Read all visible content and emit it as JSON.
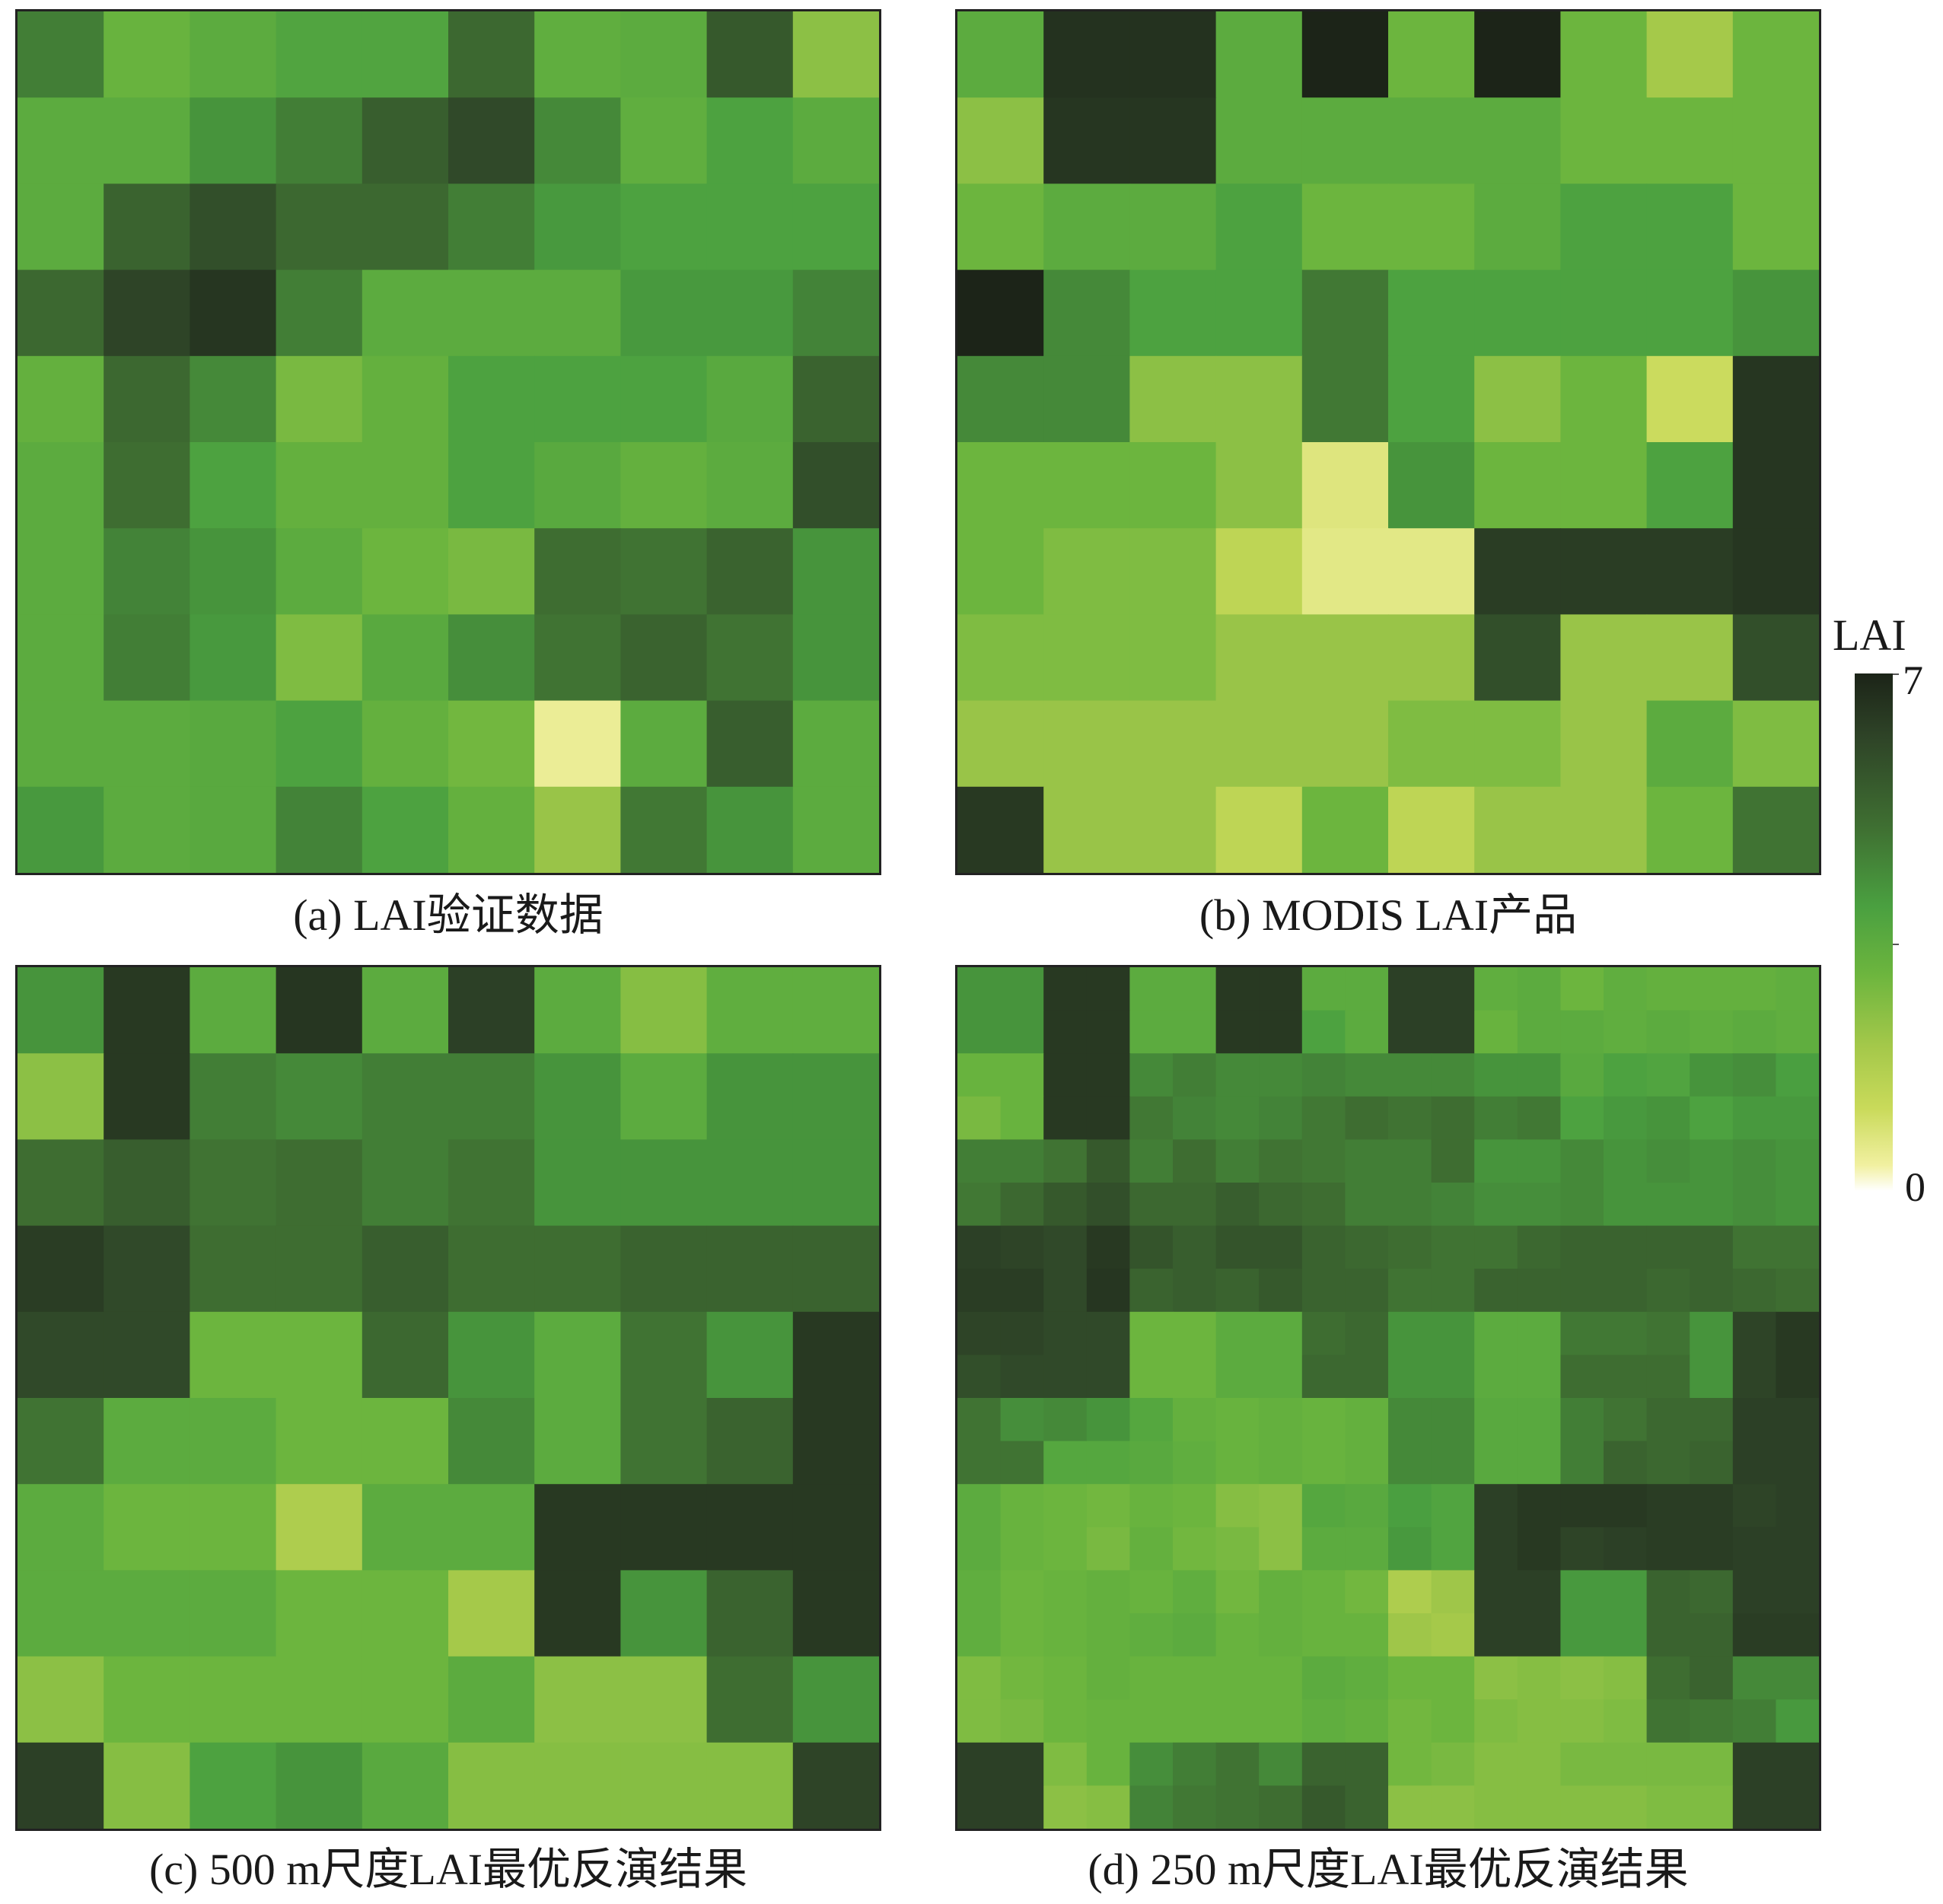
{
  "chart_data": [
    {
      "type": "heatmap",
      "title": "(a) LAI验证数据",
      "rows": [
        [
          5.0,
          3.6,
          3.9,
          4.2,
          4.2,
          5.4,
          3.8,
          3.9,
          5.7,
          3.0
        ],
        [
          3.9,
          3.9,
          4.6,
          5.0,
          5.6,
          6.0,
          4.8,
          3.8,
          4.3,
          3.9
        ],
        [
          3.9,
          5.5,
          5.9,
          5.4,
          5.4,
          5.0,
          4.5,
          4.3,
          4.3,
          4.3
        ],
        [
          5.4,
          6.1,
          6.5,
          5.0,
          3.9,
          3.9,
          3.9,
          4.5,
          4.5,
          4.9
        ],
        [
          3.7,
          5.4,
          4.8,
          3.3,
          3.7,
          4.3,
          4.3,
          4.3,
          4.0,
          5.5
        ],
        [
          3.9,
          5.3,
          4.3,
          3.7,
          3.7,
          4.3,
          4.0,
          3.7,
          3.9,
          5.9
        ],
        [
          3.9,
          4.9,
          4.6,
          3.9,
          3.5,
          3.3,
          5.3,
          5.2,
          5.5,
          4.6
        ],
        [
          3.9,
          5.0,
          4.5,
          3.2,
          4.0,
          4.7,
          5.2,
          5.5,
          5.2,
          4.6
        ],
        [
          3.9,
          3.9,
          4.0,
          4.3,
          3.7,
          3.4,
          1.0,
          3.9,
          5.6,
          3.9
        ],
        [
          4.5,
          3.9,
          4.0,
          4.9,
          4.3,
          3.7,
          2.8,
          5.1,
          4.6,
          3.9
        ]
      ]
    },
    {
      "type": "heatmap",
      "title": "(b) MODIS LAI产品",
      "rows": [
        [
          3.9,
          6.6,
          6.6,
          3.9,
          7.0,
          3.5,
          7.0,
          3.5,
          2.6,
          3.5
        ],
        [
          3.0,
          6.5,
          6.5,
          3.9,
          3.9,
          3.9,
          3.9,
          3.5,
          3.5,
          3.5
        ],
        [
          3.5,
          3.9,
          3.9,
          4.3,
          3.5,
          3.5,
          3.9,
          4.3,
          4.3,
          3.5
        ],
        [
          7.0,
          4.8,
          4.3,
          4.3,
          5.1,
          4.3,
          4.3,
          4.3,
          4.3,
          4.6
        ],
        [
          4.8,
          4.8,
          3.0,
          3.0,
          5.1,
          4.3,
          3.0,
          3.5,
          1.7,
          6.5
        ],
        [
          3.5,
          3.5,
          3.5,
          3.0,
          1.3,
          4.6,
          3.5,
          3.5,
          4.3,
          6.5
        ],
        [
          3.5,
          3.2,
          3.2,
          2.0,
          1.2,
          1.2,
          6.3,
          6.3,
          6.3,
          6.5
        ],
        [
          3.2,
          3.2,
          3.2,
          2.8,
          2.8,
          2.8,
          5.9,
          2.8,
          2.8,
          5.9
        ],
        [
          2.8,
          2.8,
          2.8,
          2.8,
          2.8,
          3.2,
          3.2,
          2.8,
          3.9,
          3.2
        ],
        [
          6.4,
          2.8,
          2.8,
          2.0,
          3.5,
          2.0,
          2.8,
          2.8,
          3.5,
          5.2
        ]
      ]
    },
    {
      "type": "heatmap",
      "title": "(c) 500 m尺度LAI最优反演结果",
      "rows": [
        [
          4.6,
          6.4,
          3.9,
          6.5,
          3.9,
          6.2,
          3.9,
          3.1,
          3.8,
          3.8
        ],
        [
          3.0,
          6.4,
          5.0,
          4.8,
          5.0,
          5.0,
          4.6,
          3.9,
          4.6,
          4.6
        ],
        [
          5.3,
          5.6,
          5.2,
          5.3,
          5.0,
          5.2,
          4.6,
          4.6,
          4.6,
          4.6
        ],
        [
          6.3,
          6.0,
          5.3,
          5.3,
          5.6,
          5.3,
          5.3,
          5.5,
          5.5,
          5.5
        ],
        [
          6.0,
          6.0,
          3.5,
          3.5,
          5.4,
          4.6,
          3.9,
          5.2,
          4.6,
          6.4
        ],
        [
          5.2,
          3.9,
          3.9,
          3.5,
          3.5,
          4.8,
          3.9,
          5.2,
          5.5,
          6.4
        ],
        [
          3.9,
          3.5,
          3.5,
          2.4,
          3.9,
          3.9,
          6.4,
          6.4,
          6.4,
          6.4
        ],
        [
          3.9,
          3.9,
          3.9,
          3.5,
          3.5,
          2.6,
          6.4,
          4.6,
          5.5,
          6.4
        ],
        [
          3.0,
          3.5,
          3.5,
          3.5,
          3.5,
          3.9,
          3.0,
          3.0,
          5.3,
          4.6
        ],
        [
          6.2,
          3.1,
          4.3,
          4.6,
          4.0,
          3.1,
          3.1,
          3.1,
          3.1,
          6.1
        ]
      ]
    },
    {
      "type": "heatmap",
      "title": "(d) 250 m尺度LAI最优反演结果",
      "rows": [
        [
          4.6,
          4.6,
          6.4,
          6.4,
          3.9,
          3.9,
          6.4,
          6.4,
          3.9,
          3.9,
          6.2,
          6.2,
          3.8,
          3.9,
          3.5,
          3.8,
          3.7,
          3.7,
          3.7,
          3.8
        ],
        [
          4.6,
          4.6,
          6.4,
          6.4,
          3.9,
          3.9,
          6.4,
          6.4,
          4.3,
          3.9,
          6.2,
          6.2,
          3.6,
          3.9,
          3.9,
          3.8,
          3.9,
          3.8,
          3.9,
          3.8
        ],
        [
          3.6,
          3.6,
          6.4,
          6.4,
          4.8,
          5.0,
          4.8,
          4.8,
          4.9,
          4.8,
          4.8,
          4.8,
          4.6,
          4.6,
          4.0,
          4.3,
          4.2,
          4.6,
          4.7,
          4.4
        ],
        [
          3.3,
          3.6,
          6.4,
          6.4,
          5.1,
          4.9,
          4.8,
          4.9,
          5.1,
          5.3,
          5.2,
          5.3,
          5.0,
          5.1,
          4.3,
          4.5,
          4.6,
          4.3,
          4.5,
          4.5
        ],
        [
          5.0,
          5.0,
          5.2,
          5.7,
          5.0,
          5.3,
          5.0,
          5.2,
          5.1,
          5.0,
          5.0,
          5.3,
          4.6,
          4.6,
          4.8,
          4.6,
          4.7,
          4.6,
          4.7,
          4.6
        ],
        [
          5.1,
          5.4,
          5.7,
          5.9,
          5.4,
          5.4,
          5.6,
          5.4,
          5.3,
          5.0,
          5.0,
          4.9,
          4.7,
          4.7,
          4.8,
          4.6,
          4.6,
          4.6,
          4.7,
          4.6
        ],
        [
          6.2,
          6.1,
          6.0,
          6.4,
          5.8,
          5.6,
          5.8,
          5.8,
          5.5,
          5.4,
          5.3,
          5.2,
          5.2,
          5.4,
          5.5,
          5.5,
          5.5,
          5.5,
          5.2,
          5.2
        ],
        [
          6.3,
          6.3,
          6.0,
          6.5,
          5.5,
          5.6,
          5.5,
          5.7,
          5.5,
          5.5,
          5.2,
          5.2,
          5.5,
          5.5,
          5.5,
          5.5,
          5.4,
          5.5,
          5.4,
          5.3
        ],
        [
          6.1,
          6.1,
          6.0,
          6.0,
          3.5,
          3.5,
          3.9,
          3.9,
          5.3,
          5.4,
          4.6,
          4.6,
          3.9,
          3.9,
          5.1,
          5.1,
          5.2,
          4.6,
          6.1,
          6.4
        ],
        [
          5.9,
          6.0,
          6.0,
          6.0,
          3.5,
          3.5,
          3.9,
          3.9,
          5.4,
          5.4,
          4.6,
          4.6,
          3.9,
          3.9,
          5.3,
          5.3,
          5.3,
          4.6,
          6.1,
          6.4
        ],
        [
          5.2,
          4.7,
          4.8,
          4.6,
          4.1,
          3.7,
          3.6,
          3.7,
          3.6,
          3.7,
          4.8,
          4.8,
          4.0,
          4.0,
          5.0,
          5.2,
          5.4,
          5.4,
          6.2,
          6.2
        ],
        [
          5.2,
          5.2,
          4.1,
          4.1,
          4.0,
          3.8,
          3.6,
          3.7,
          3.6,
          3.7,
          4.8,
          4.8,
          4.0,
          4.0,
          5.0,
          5.5,
          5.4,
          5.5,
          6.2,
          6.2
        ],
        [
          3.9,
          3.6,
          3.5,
          3.4,
          3.6,
          3.5,
          3.1,
          3.0,
          4.1,
          4.0,
          4.4,
          4.2,
          6.2,
          6.4,
          6.4,
          6.4,
          6.3,
          6.3,
          6.1,
          6.2
        ],
        [
          3.9,
          3.6,
          3.5,
          3.3,
          3.7,
          3.4,
          3.3,
          3.0,
          3.9,
          3.9,
          4.5,
          4.2,
          6.2,
          6.4,
          6.1,
          6.2,
          6.3,
          6.3,
          6.2,
          6.2
        ],
        [
          3.8,
          3.5,
          3.6,
          3.7,
          3.6,
          3.8,
          3.4,
          3.7,
          3.6,
          3.4,
          2.4,
          2.7,
          6.2,
          6.2,
          4.5,
          4.5,
          5.5,
          5.4,
          6.2,
          6.2
        ],
        [
          3.8,
          3.5,
          3.6,
          3.7,
          3.8,
          3.9,
          3.6,
          3.7,
          3.6,
          3.6,
          2.7,
          2.6,
          6.2,
          6.2,
          4.5,
          4.5,
          5.5,
          5.5,
          6.3,
          6.3
        ],
        [
          3.2,
          3.4,
          3.5,
          3.7,
          3.6,
          3.6,
          3.6,
          3.6,
          3.9,
          3.8,
          3.5,
          3.5,
          3.0,
          3.1,
          3.0,
          3.1,
          5.3,
          5.5,
          4.8,
          4.8
        ],
        [
          3.2,
          3.3,
          3.5,
          3.6,
          3.6,
          3.6,
          3.6,
          3.6,
          3.8,
          3.7,
          3.4,
          3.5,
          3.2,
          3.1,
          3.1,
          3.2,
          5.2,
          5.1,
          5.0,
          4.5
        ],
        [
          6.2,
          6.2,
          3.2,
          3.6,
          4.7,
          5.0,
          5.2,
          4.8,
          5.5,
          5.5,
          3.4,
          3.3,
          3.1,
          3.1,
          3.3,
          3.3,
          3.3,
          3.3,
          6.2,
          6.2
        ],
        [
          6.2,
          6.2,
          3.0,
          3.1,
          4.9,
          5.1,
          5.2,
          5.3,
          5.7,
          5.5,
          3.0,
          3.0,
          3.1,
          3.1,
          3.1,
          3.1,
          3.2,
          3.2,
          6.2,
          6.2
        ]
      ]
    }
  ],
  "colorbar": {
    "title": "LAI",
    "max_label": "7",
    "min_label": "0",
    "min": 0,
    "max": 7,
    "colors": [
      "#ffffff",
      "#f1f0a0",
      "#c9da5a",
      "#a4c84a",
      "#6cb53e",
      "#4aa040",
      "#3f7032",
      "#2e4327",
      "#1c2418"
    ]
  }
}
